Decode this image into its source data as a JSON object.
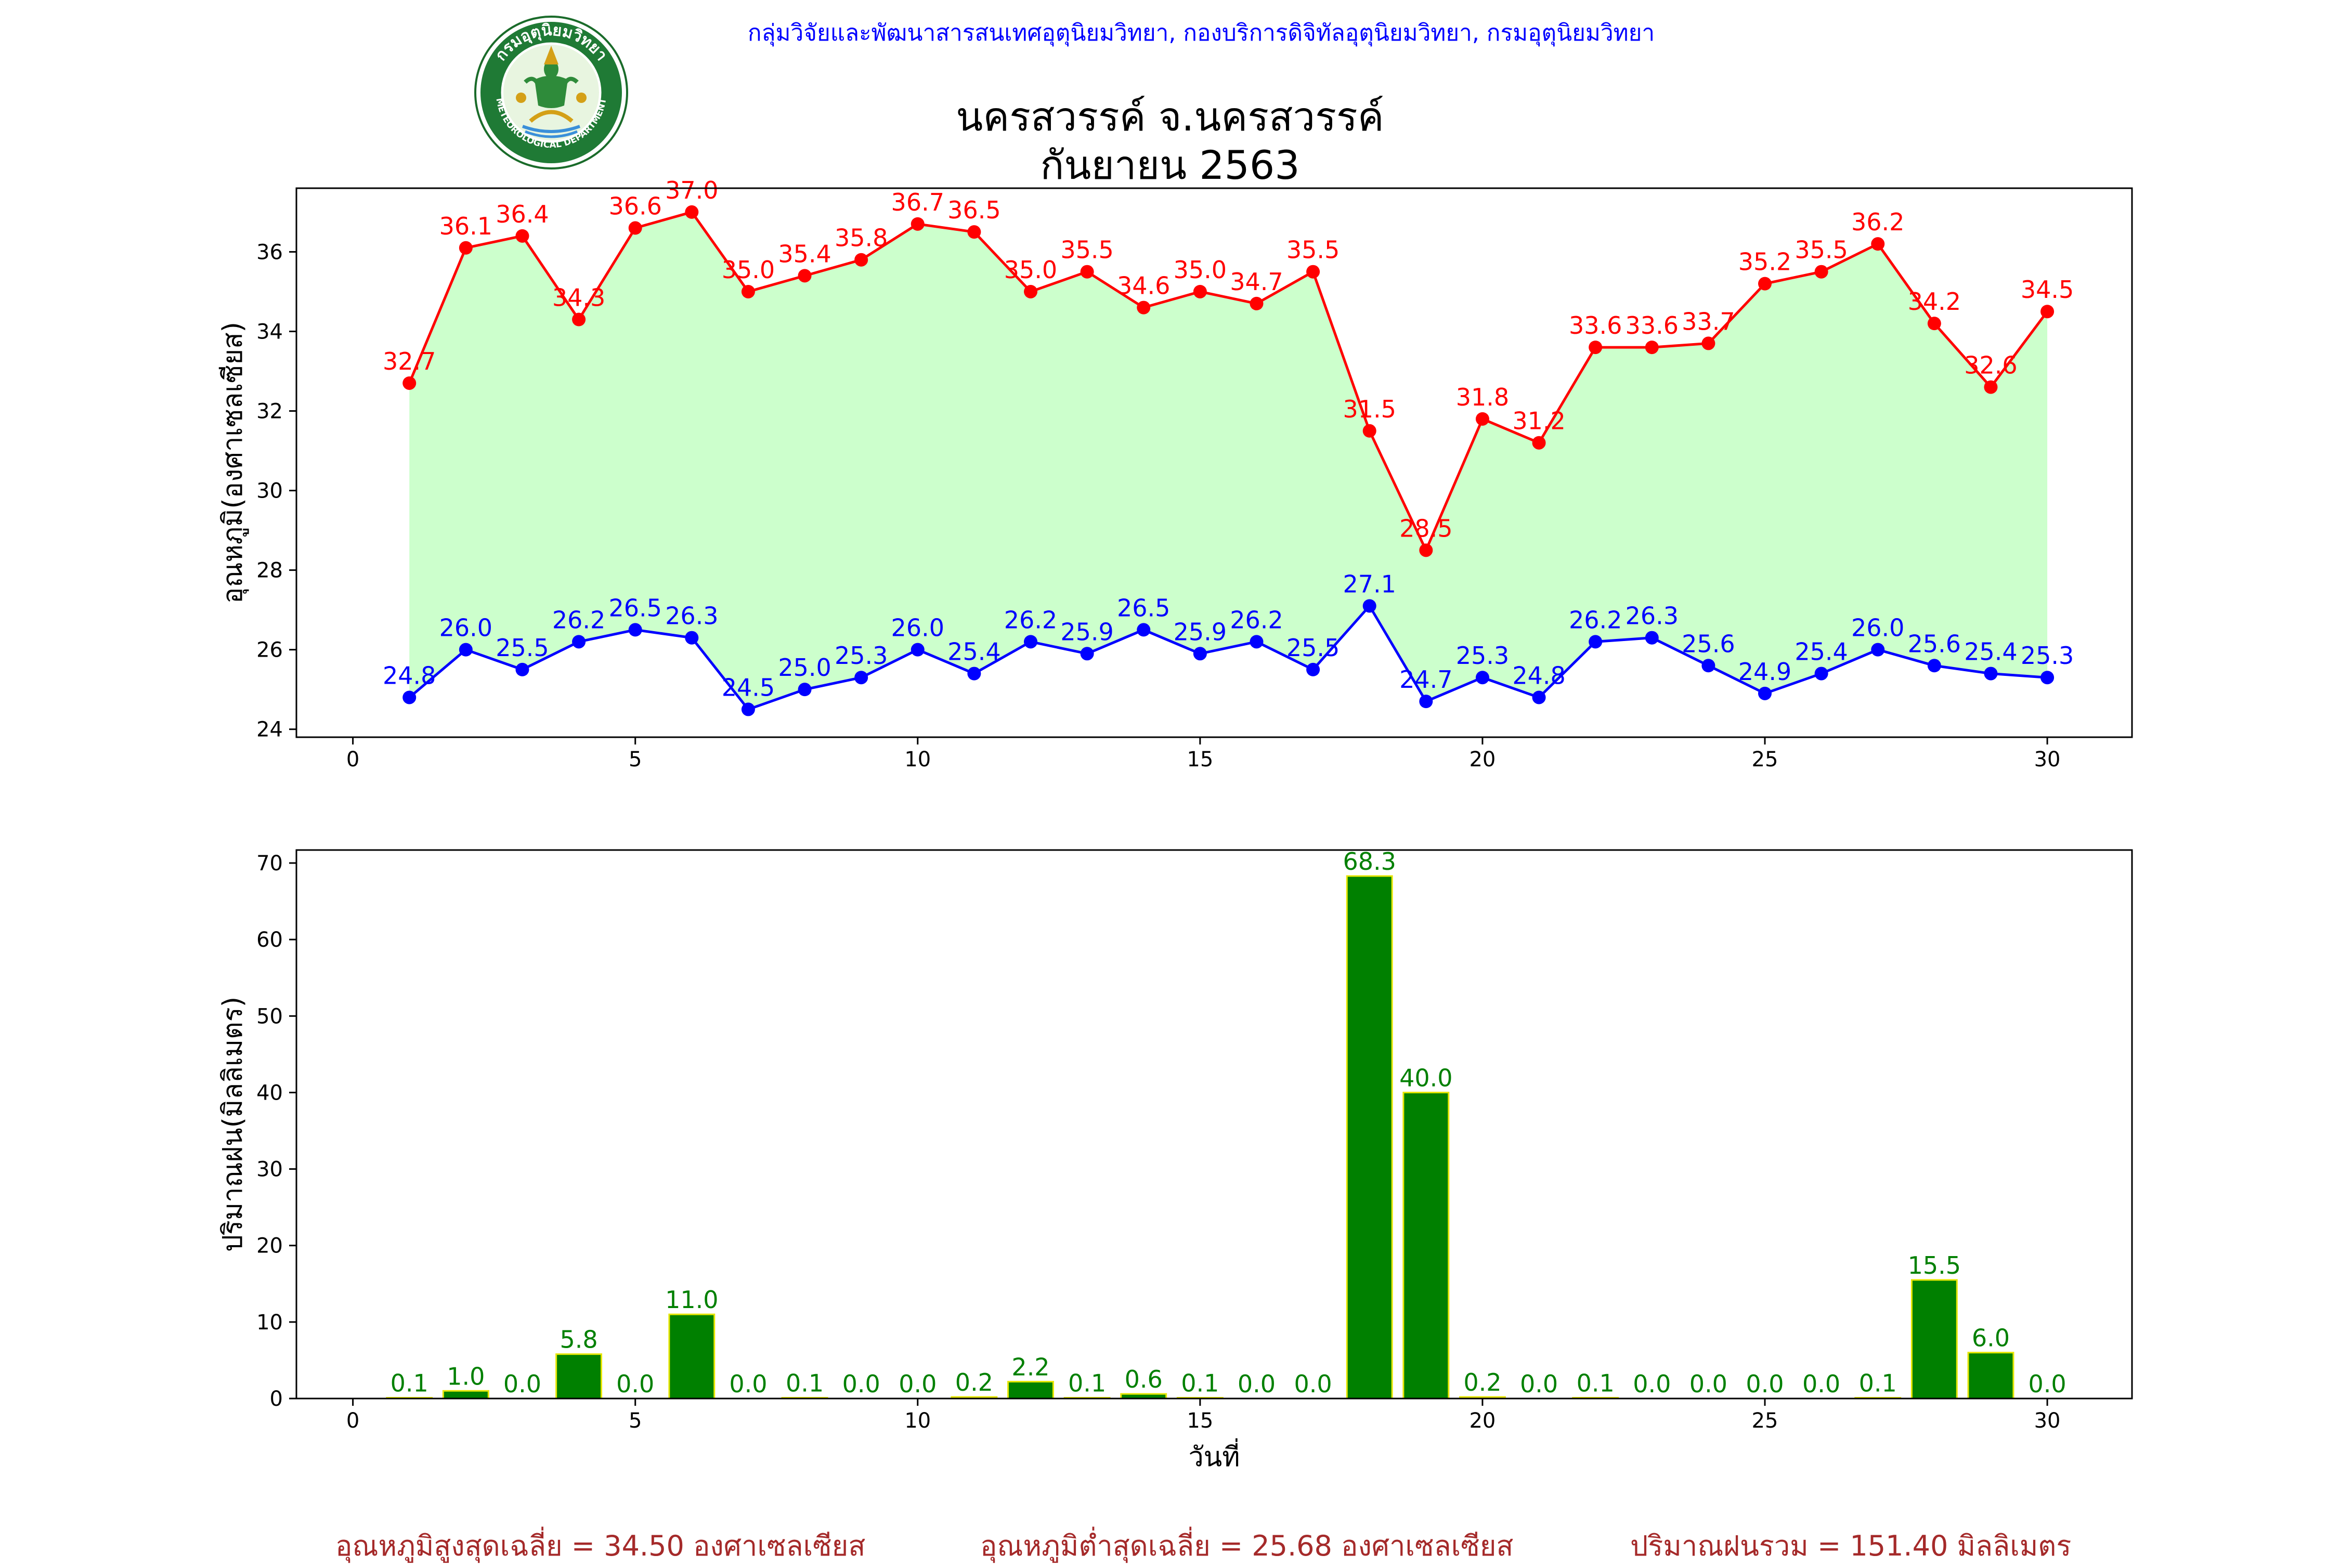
{
  "header": {
    "org_line": "กลุ่มวิจัยและพัฒนาสารสนเทศอุตุนิยมวิทยา, กองบริการดิจิทัลอุตุนิยมวิทยา, กรมอุตุนิยมวิทยา",
    "logo_text_top": "กรมอุตุนิยมวิทยา",
    "logo_text_bottom": "METEOROLOGICAL DEPARTMENT"
  },
  "title": {
    "line1": "นครสวรรค์  จ.นครสวรรค์",
    "line2": "กันยายน 2563"
  },
  "colors": {
    "max_temp": "#ff0000",
    "min_temp": "#0000ff",
    "fill": "#ccffcc",
    "bar": "#008000",
    "bar_edge": "#e6e600",
    "rain_label": "#008000",
    "summary": "#a52a2a",
    "header": "#0000ff"
  },
  "chart_data": [
    {
      "type": "line",
      "ylabel": "อุณหภูมิ(องศาเซลเซียส)",
      "xlabel": "",
      "xlim": [
        -1,
        31.5
      ],
      "ylim": [
        23.8,
        37.6
      ],
      "xticks": [
        0,
        5,
        10,
        15,
        20,
        25,
        30
      ],
      "yticks": [
        24,
        26,
        28,
        30,
        32,
        34,
        36
      ],
      "grid": false,
      "x": [
        1,
        2,
        3,
        4,
        5,
        6,
        7,
        8,
        9,
        10,
        11,
        12,
        13,
        14,
        15,
        16,
        17,
        18,
        19,
        20,
        21,
        22,
        23,
        24,
        25,
        26,
        27,
        28,
        29,
        30
      ],
      "series": [
        {
          "values": [
            32.7,
            36.1,
            36.4,
            34.3,
            36.6,
            37.0,
            35.0,
            35.4,
            35.8,
            36.7,
            36.5,
            35.0,
            35.5,
            34.6,
            35.0,
            34.7,
            35.5,
            31.5,
            28.5,
            31.8,
            31.2,
            33.6,
            33.6,
            33.7,
            35.2,
            35.5,
            36.2,
            34.2,
            32.6,
            34.5
          ]
        },
        {
          "values": [
            24.8,
            26.0,
            25.5,
            26.2,
            26.5,
            26.3,
            24.5,
            25.0,
            25.3,
            26.0,
            25.4,
            26.2,
            25.9,
            26.5,
            25.9,
            26.2,
            25.5,
            27.1,
            24.7,
            25.3,
            24.8,
            26.2,
            26.3,
            25.6,
            24.9,
            25.4,
            26.0,
            25.6,
            25.4,
            25.3
          ]
        }
      ]
    },
    {
      "type": "bar",
      "ylabel": "ปริมาณฝน(มิลลิเมตร)",
      "xlabel": "วันที่",
      "xlim": [
        -1,
        31.5
      ],
      "ylim": [
        0,
        71.7
      ],
      "xticks": [
        0,
        5,
        10,
        15,
        20,
        25,
        30
      ],
      "yticks": [
        0,
        10,
        20,
        30,
        40,
        50,
        60,
        70
      ],
      "grid": false,
      "x": [
        1,
        2,
        3,
        4,
        5,
        6,
        7,
        8,
        9,
        10,
        11,
        12,
        13,
        14,
        15,
        16,
        17,
        18,
        19,
        20,
        21,
        22,
        23,
        24,
        25,
        26,
        27,
        28,
        29,
        30
      ],
      "values": [
        0.1,
        1.0,
        0.0,
        5.8,
        0.0,
        11.0,
        0.0,
        0.1,
        0.0,
        0.0,
        0.2,
        2.2,
        0.1,
        0.6,
        0.1,
        0.0,
        0.0,
        68.3,
        40.0,
        0.2,
        0.0,
        0.1,
        0.0,
        0.0,
        0.0,
        0.0,
        0.1,
        15.5,
        6.0,
        0.0
      ]
    }
  ],
  "summary": {
    "avg_max": "อุณหภูมิสูงสุดเฉลี่ย = 34.50 องศาเซลเซียส",
    "avg_min": "อุณหภูมิต่ำสุดเฉลี่ย = 25.68 องศาเซลเซียส",
    "total_rain": "ปริมาณฝนรวม = 151.40 มิลลิเมตร"
  }
}
